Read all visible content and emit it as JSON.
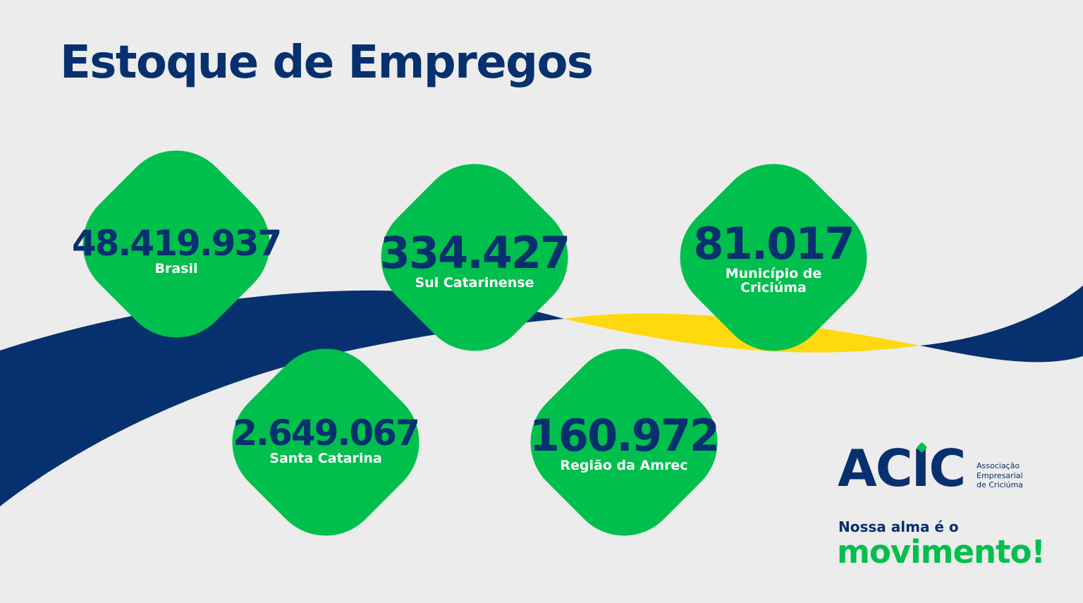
{
  "title": "Estoque de Empregos",
  "cards": [
    {
      "value": "48.419.937",
      "label": "Brasil"
    },
    {
      "value": "334.427",
      "label": "Sul Catarinense"
    },
    {
      "value": "81.017",
      "label": "Município de Criciúma"
    },
    {
      "value": "2.649.067",
      "label": "Santa Catarina"
    },
    {
      "value": "160.972",
      "label": "Região da Amrec"
    }
  ],
  "logo": {
    "name": "ACIC",
    "subtitle_lines": [
      "Associação",
      "Empresarial",
      "de Criciúma"
    ]
  },
  "slogan": {
    "line1": "Nossa alma é o",
    "line2": "movimento!"
  },
  "colors": {
    "background": "#ececec",
    "navy": "#07306f",
    "green": "#00bf4c",
    "yellow": "#ffd90f"
  }
}
